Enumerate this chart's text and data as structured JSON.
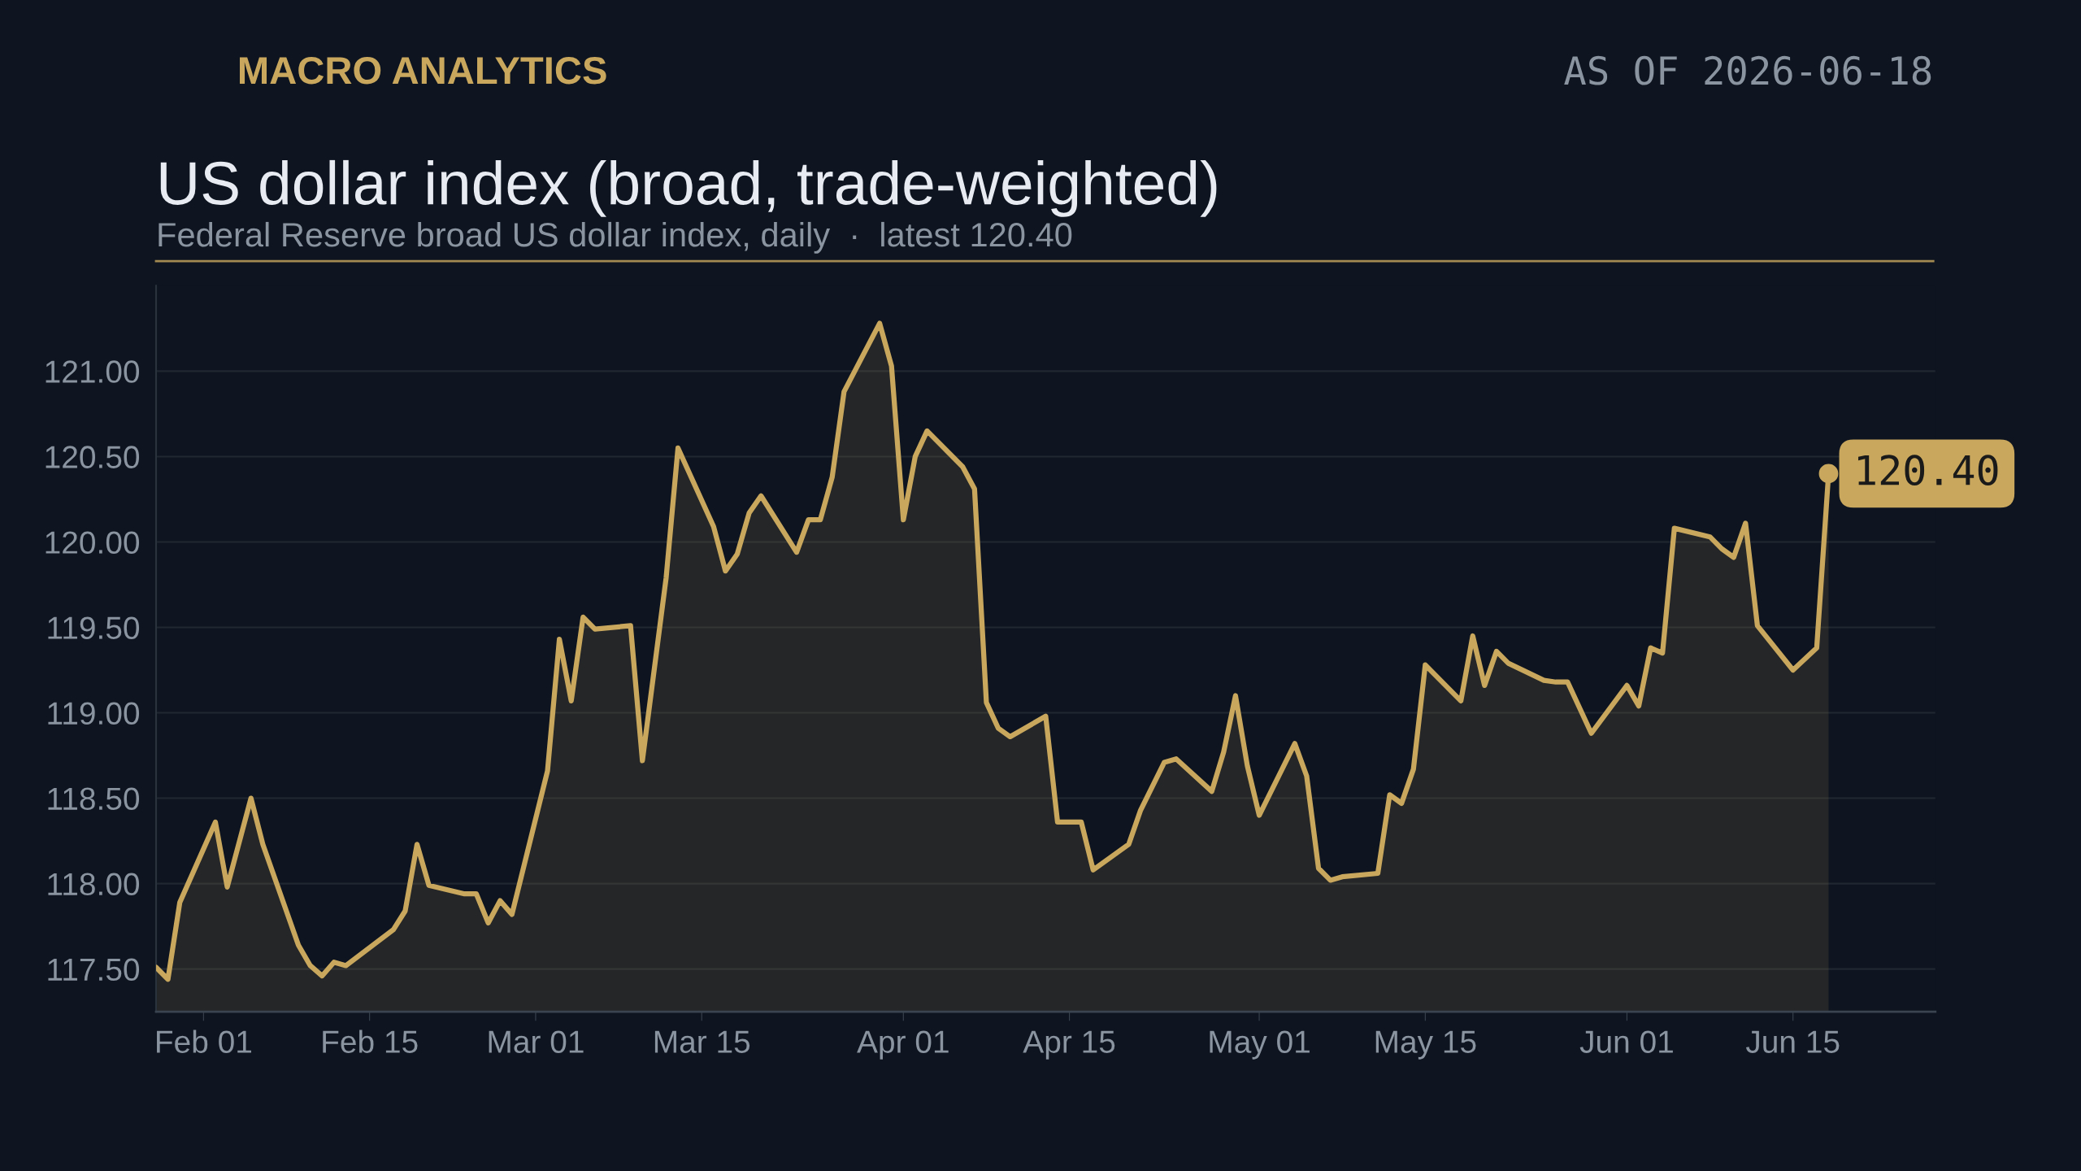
{
  "chart_data": {
    "type": "area",
    "title": "US dollar index (broad, trade-weighted)",
    "subtitle": "Federal Reserve broad US dollar index, daily  ·  latest 120.40",
    "annotations": [
      "MACRO ANALYTICS",
      "AS OF 2026-06-18",
      {
        "text": "120.40",
        "x": "2026-06-18",
        "y": 120.4
      }
    ],
    "x": [
      "2026-01-28",
      "2026-01-29",
      "2026-01-30",
      "2026-02-02",
      "2026-02-03",
      "2026-02-05",
      "2026-02-06",
      "2026-02-09",
      "2026-02-10",
      "2026-02-11",
      "2026-02-12",
      "2026-02-13",
      "2026-02-17",
      "2026-02-18",
      "2026-02-19",
      "2026-02-20",
      "2026-02-23",
      "2026-02-24",
      "2026-02-25",
      "2026-02-26",
      "2026-02-27",
      "2026-03-02",
      "2026-03-03",
      "2026-03-04",
      "2026-03-05",
      "2026-03-06",
      "2026-03-09",
      "2026-03-10",
      "2026-03-12",
      "2026-03-13",
      "2026-03-16",
      "2026-03-17",
      "2026-03-18",
      "2026-03-19",
      "2026-03-20",
      "2026-03-23",
      "2026-03-24",
      "2026-03-25",
      "2026-03-26",
      "2026-03-27",
      "2026-03-30",
      "2026-03-31",
      "2026-04-01",
      "2026-04-02",
      "2026-04-03",
      "2026-04-06",
      "2026-04-07",
      "2026-04-08",
      "2026-04-09",
      "2026-04-10",
      "2026-04-13",
      "2026-04-14",
      "2026-04-16",
      "2026-04-17",
      "2026-04-20",
      "2026-04-21",
      "2026-04-22",
      "2026-04-23",
      "2026-04-24",
      "2026-04-27",
      "2026-04-28",
      "2026-04-29",
      "2026-04-30",
      "2026-05-01",
      "2026-05-04",
      "2026-05-05",
      "2026-05-06",
      "2026-05-07",
      "2026-05-08",
      "2026-05-11",
      "2026-05-12",
      "2026-05-13",
      "2026-05-14",
      "2026-05-15",
      "2026-05-18",
      "2026-05-19",
      "2026-05-20",
      "2026-05-21",
      "2026-05-22",
      "2026-05-25",
      "2026-05-26",
      "2026-05-27",
      "2026-05-29",
      "2026-06-01",
      "2026-06-02",
      "2026-06-03",
      "2026-06-04",
      "2026-06-05",
      "2026-06-08",
      "2026-06-09",
      "2026-06-10",
      "2026-06-11",
      "2026-06-12",
      "2026-06-15",
      "2026-06-17",
      "2026-06-18"
    ],
    "series": [
      {
        "color": "#c9a85e",
        "values": [
          117.51,
          117.44,
          117.89,
          118.36,
          117.98,
          118.5,
          118.23,
          117.64,
          117.52,
          117.46,
          117.54,
          117.52,
          117.73,
          117.84,
          118.23,
          117.99,
          117.94,
          117.94,
          117.77,
          117.9,
          117.82,
          118.66,
          119.43,
          119.07,
          119.56,
          119.49,
          119.51,
          118.72,
          119.79,
          120.55,
          120.09,
          119.83,
          119.93,
          120.17,
          120.27,
          119.94,
          120.13,
          120.13,
          120.38,
          120.88,
          121.28,
          121.03,
          120.13,
          120.5,
          120.65,
          120.44,
          120.31,
          119.06,
          118.91,
          118.86,
          118.98,
          118.36,
          118.36,
          118.08,
          118.23,
          118.43,
          118.57,
          118.71,
          118.73,
          118.54,
          118.77,
          119.1,
          118.69,
          118.4,
          118.82,
          118.63,
          118.09,
          118.02,
          118.04,
          118.06,
          118.52,
          118.47,
          118.67,
          119.28,
          119.07,
          119.45,
          119.16,
          119.36,
          119.29,
          119.19,
          119.18,
          119.18,
          118.88,
          119.16,
          119.04,
          119.38,
          119.35,
          120.08,
          120.03,
          119.96,
          119.91,
          120.11,
          119.51,
          119.25,
          119.38,
          120.4
        ]
      }
    ],
    "xlim": [
      "2026-01-28",
      "2026-06-27"
    ],
    "xticks": [
      {
        "value": "2026-02-01",
        "label": "Feb 01"
      },
      {
        "value": "2026-02-15",
        "label": "Feb 15"
      },
      {
        "value": "2026-03-01",
        "label": "Mar 01"
      },
      {
        "value": "2026-03-15",
        "label": "Mar 15"
      },
      {
        "value": "2026-04-01",
        "label": "Apr 01"
      },
      {
        "value": "2026-04-15",
        "label": "Apr 15"
      },
      {
        "value": "2026-05-01",
        "label": "May 01"
      },
      {
        "value": "2026-05-15",
        "label": "May 15"
      },
      {
        "value": "2026-06-01",
        "label": "Jun 01"
      },
      {
        "value": "2026-06-15",
        "label": "Jun 15"
      }
    ],
    "ylim": [
      117.25,
      121.5
    ],
    "yticks": [
      {
        "value": 117.5,
        "label": "117.50"
      },
      {
        "value": 118,
        "label": "118.00"
      },
      {
        "value": 118.5,
        "label": "118.50"
      },
      {
        "value": 119,
        "label": "119.00"
      },
      {
        "value": 119.5,
        "label": "119.50"
      },
      {
        "value": 120,
        "label": "120.00"
      },
      {
        "value": 120.5,
        "label": "120.50"
      },
      {
        "value": 121,
        "label": "121.00"
      }
    ],
    "grid": "y",
    "legend": false
  }
}
